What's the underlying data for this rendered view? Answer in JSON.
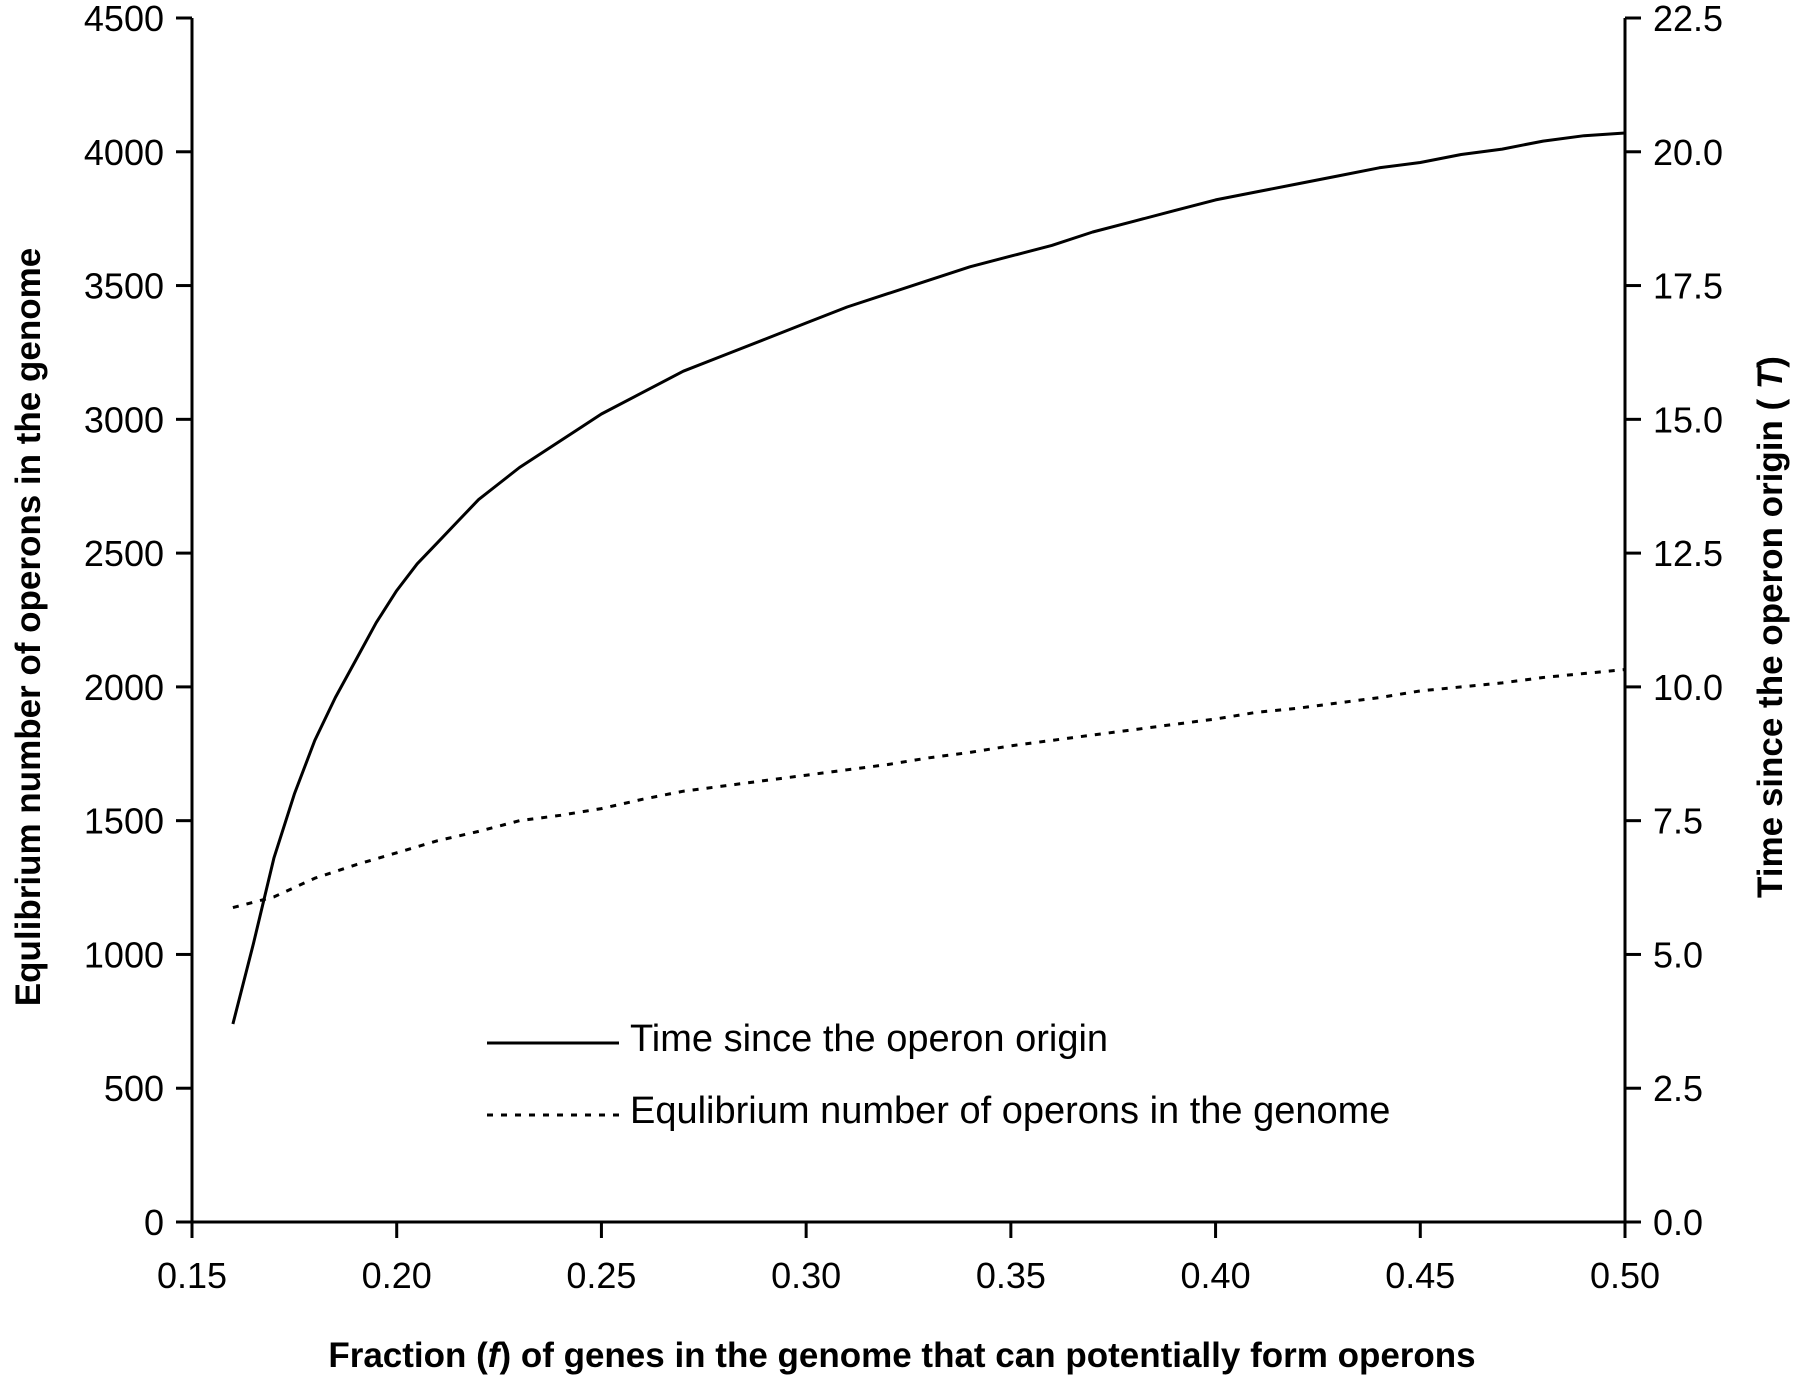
{
  "chart_data": {
    "type": "line",
    "title": "",
    "xlabel": "Fraction ( f ) of genes in the genome that can potentially form operons",
    "xlabel_parts": [
      "Fraction (",
      "f",
      ") of genes in the genome that can potentially form operons"
    ],
    "ylabel": "Equlibrium number of operons in the genome",
    "y2label": "Time since the operon origin ( T )",
    "y2label_parts": [
      "Time since the operon origin ( ",
      "T",
      ")"
    ],
    "xlim": [
      0.15,
      0.5
    ],
    "ylim": [
      0,
      4500
    ],
    "y2lim": [
      0,
      22.5
    ],
    "x_ticks": [
      "0.15",
      "0.20",
      "0.25",
      "0.30",
      "0.35",
      "0.40",
      "0.45",
      "0.50"
    ],
    "y_ticks": [
      "0",
      "500",
      "1000",
      "1500",
      "2000",
      "2500",
      "3000",
      "3500",
      "4000",
      "4500"
    ],
    "y2_ticks": [
      "0.0",
      "2.5",
      "5.0",
      "7.5",
      "10.0",
      "12.5",
      "15.0",
      "17.5",
      "20.0",
      "22.5"
    ],
    "grid": false,
    "legend_position": "bottom-center",
    "series": [
      {
        "name": "Time since the operon origin",
        "axis": "right",
        "style": "solid",
        "color": "#000000",
        "x": [
          0.16,
          0.165,
          0.17,
          0.175,
          0.18,
          0.185,
          0.19,
          0.195,
          0.2,
          0.205,
          0.21,
          0.215,
          0.22,
          0.225,
          0.23,
          0.235,
          0.24,
          0.245,
          0.25,
          0.26,
          0.27,
          0.28,
          0.29,
          0.3,
          0.31,
          0.32,
          0.33,
          0.34,
          0.35,
          0.36,
          0.37,
          0.38,
          0.39,
          0.4,
          0.41,
          0.42,
          0.43,
          0.44,
          0.45,
          0.46,
          0.47,
          0.48,
          0.49,
          0.5
        ],
        "y": [
          3.7,
          5.2,
          6.8,
          8.0,
          9.0,
          9.8,
          10.5,
          11.2,
          11.8,
          12.3,
          12.7,
          13.1,
          13.5,
          13.8,
          14.1,
          14.35,
          14.6,
          14.85,
          15.1,
          15.5,
          15.9,
          16.2,
          16.5,
          16.8,
          17.1,
          17.35,
          17.6,
          17.85,
          18.05,
          18.25,
          18.5,
          18.7,
          18.9,
          19.1,
          19.25,
          19.4,
          19.55,
          19.7,
          19.8,
          19.95,
          20.05,
          20.2,
          20.3,
          20.35
        ]
      },
      {
        "name": "Equlibrium number of operons in the genome",
        "axis": "left",
        "style": "dotted",
        "color": "#000000",
        "x": [
          0.16,
          0.17,
          0.18,
          0.19,
          0.2,
          0.21,
          0.22,
          0.23,
          0.24,
          0.25,
          0.26,
          0.27,
          0.28,
          0.29,
          0.3,
          0.31,
          0.32,
          0.33,
          0.34,
          0.35,
          0.36,
          0.37,
          0.38,
          0.39,
          0.4,
          0.41,
          0.42,
          0.43,
          0.44,
          0.45,
          0.46,
          0.47,
          0.48,
          0.49,
          0.5
        ],
        "y": [
          1175,
          1215,
          1285,
          1335,
          1380,
          1425,
          1460,
          1500,
          1520,
          1545,
          1580,
          1610,
          1630,
          1650,
          1670,
          1690,
          1710,
          1735,
          1755,
          1780,
          1800,
          1820,
          1840,
          1860,
          1880,
          1905,
          1920,
          1940,
          1960,
          1985,
          2000,
          2015,
          2035,
          2050,
          2065
        ]
      }
    ]
  }
}
